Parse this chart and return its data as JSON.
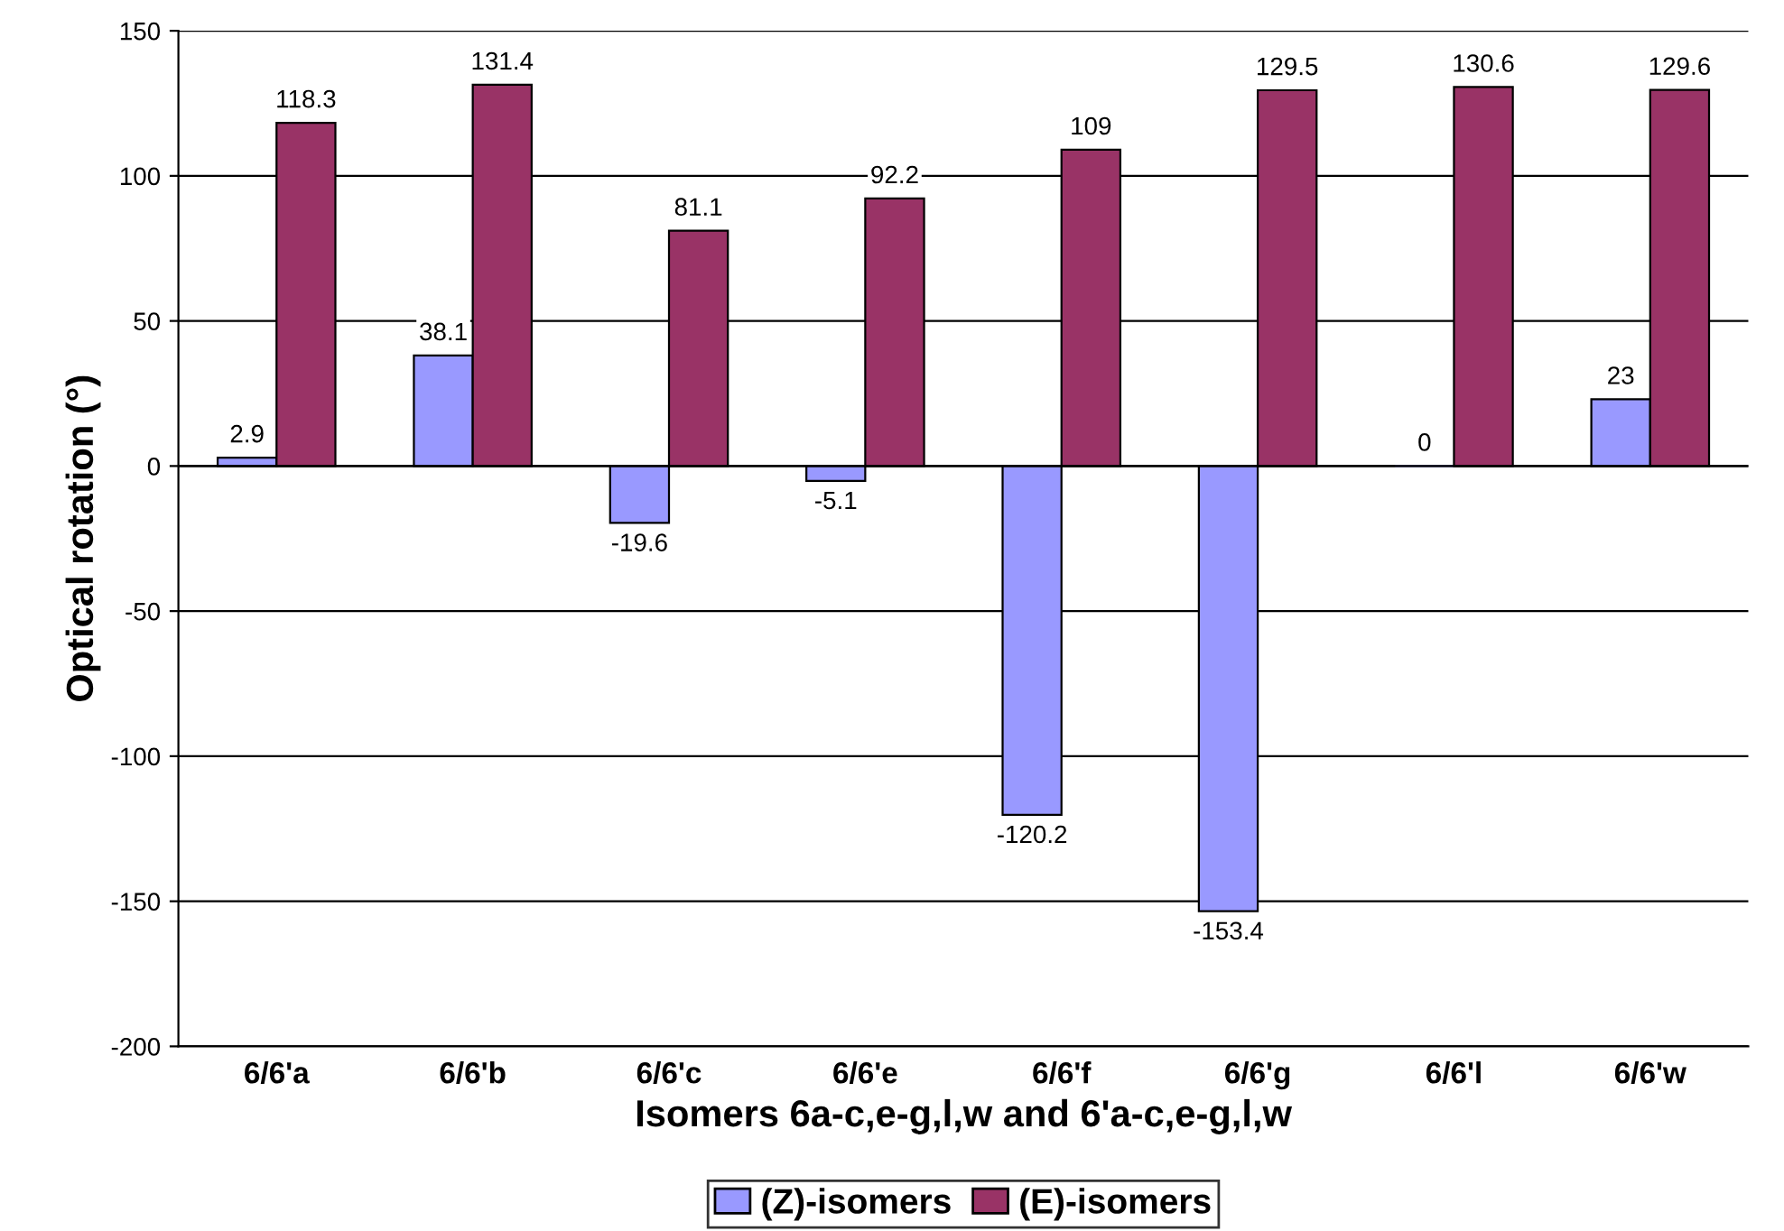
{
  "chart_data": {
    "type": "bar",
    "xlabel": "Isomers 6a-c,e-g,l,w and 6'a-c,e-g,l,w",
    "ylabel": "Optical rotation (°)",
    "categories": [
      "6/6'a",
      "6/6'b",
      "6/6'c",
      "6/6'e",
      "6/6'f",
      "6/6'g",
      "6/6'l",
      "6/6'w"
    ],
    "series": [
      {
        "name": "(Z)-isomers",
        "color": "#9999ff",
        "values": [
          2.9,
          38.1,
          -19.6,
          -5.1,
          -120.2,
          -153.4,
          0,
          23
        ]
      },
      {
        "name": "(E)-isomers",
        "color": "#993366",
        "values": [
          118.3,
          131.4,
          81.1,
          92.2,
          109,
          129.5,
          130.6,
          129.6
        ]
      }
    ],
    "ylim": [
      -200,
      150
    ],
    "yticks": [
      -200,
      -150,
      -100,
      -50,
      0,
      50,
      100,
      150
    ],
    "grid": "y",
    "legend": "bottom",
    "data_labels": true
  }
}
